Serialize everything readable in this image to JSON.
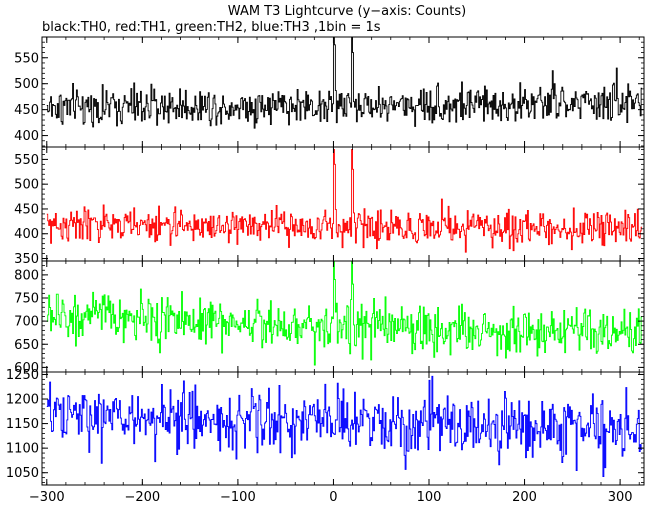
{
  "chart_data": {
    "type": "line",
    "title": "WAM T3 Lightcurve (y−axis: Counts)",
    "subtitle": "black:TH0, red:TH1, green:TH2, blue:TH3 ,1bin = 1s",
    "xlim": [
      -305,
      325
    ],
    "x_ticks": [
      -300,
      -200,
      -100,
      0,
      100,
      200,
      300
    ],
    "x_tick_labels": [
      "−300",
      "−200",
      "−100",
      "0",
      "100",
      "200",
      "300"
    ],
    "x_step": 1,
    "panels": [
      {
        "name": "TH0",
        "color": "#000000",
        "ylim": [
          378,
          590
        ],
        "y_ticks": [
          400,
          450,
          500,
          550
        ],
        "y_tick_labels": [
          "400",
          "450",
          "500",
          "550"
        ],
        "baseline_start": 455,
        "baseline_end": 462,
        "noise_sd": 18,
        "peaks": [
          {
            "x": 0,
            "value": 590
          },
          {
            "x": 1,
            "value": 575
          },
          {
            "x": 19,
            "value": 590
          },
          {
            "x": 20,
            "value": 560
          },
          {
            "x": 229,
            "value": 525
          },
          {
            "x": 296,
            "value": 530
          }
        ]
      },
      {
        "name": "TH1",
        "color": "#ff0000",
        "ylim": [
          345,
          575
        ],
        "y_ticks": [
          350,
          400,
          450,
          500,
          550
        ],
        "y_tick_labels": [
          "350",
          "400",
          "450",
          "500",
          "550"
        ],
        "baseline_start": 418,
        "baseline_end": 410,
        "noise_sd": 17,
        "peaks": [
          {
            "x": 0,
            "value": 570
          },
          {
            "x": 1,
            "value": 540
          },
          {
            "x": 19,
            "value": 570
          },
          {
            "x": 20,
            "value": 530
          },
          {
            "x": 113,
            "value": 470
          }
        ]
      },
      {
        "name": "TH2",
        "color": "#00ff00",
        "ylim": [
          590,
          830
        ],
        "y_ticks": [
          600,
          650,
          700,
          750,
          800
        ],
        "y_tick_labels": [
          "600",
          "650",
          "700",
          "750",
          "800"
        ],
        "baseline_start": 712,
        "baseline_end": 668,
        "noise_sd": 26,
        "peaks": [
          {
            "x": 0,
            "value": 830
          },
          {
            "x": 1,
            "value": 790
          },
          {
            "x": 19,
            "value": 830
          },
          {
            "x": 20,
            "value": 780
          }
        ]
      },
      {
        "name": "TH3",
        "color": "#0000ff",
        "ylim": [
          1025,
          1255
        ],
        "y_ticks": [
          1050,
          1100,
          1150,
          1200,
          1250
        ],
        "y_tick_labels": [
          "1050",
          "1100",
          "1150",
          "1200",
          "1250"
        ],
        "baseline_start": 1165,
        "baseline_end": 1138,
        "noise_sd": 32,
        "peaks": []
      }
    ]
  }
}
